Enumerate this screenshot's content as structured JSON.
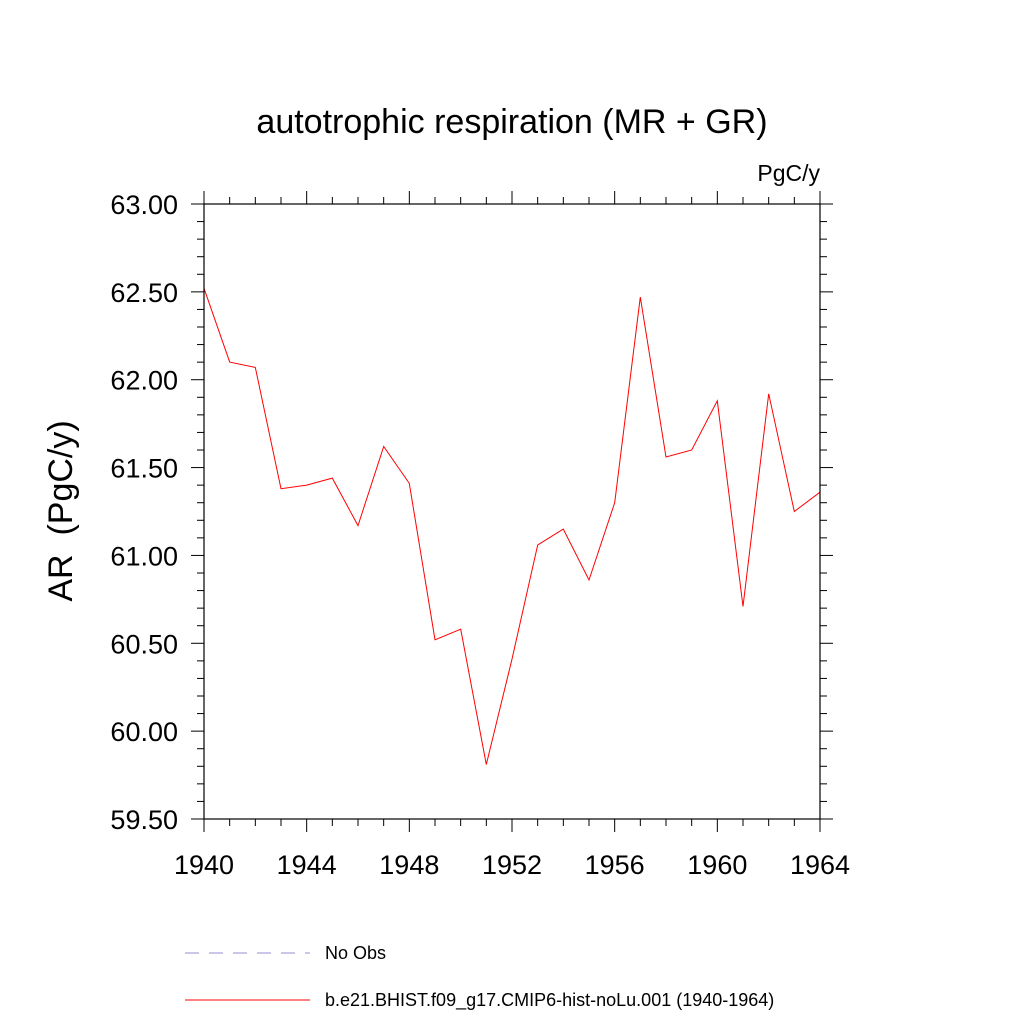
{
  "chart_data": {
    "type": "line",
    "title": "autotrophic respiration (MR + GR)",
    "units": "PgC/y",
    "ylabel": "AR  (PgC/y)",
    "xlabel": "",
    "xlim": [
      1940,
      1964
    ],
    "ylim": [
      59.5,
      63.0
    ],
    "x_ticks": [
      "1940",
      "1944",
      "1948",
      "1952",
      "1956",
      "1960",
      "1964"
    ],
    "y_ticks": [
      "59.50",
      "60.00",
      "60.50",
      "61.00",
      "61.50",
      "62.00",
      "62.50",
      "63.00"
    ],
    "series": [
      {
        "name": "b.e21.BHIST.f09_g17.CMIP6-hist-noLu.001 (1940-1964)",
        "color": "#ff0000",
        "x": [
          1940,
          1941,
          1942,
          1943,
          1944,
          1945,
          1946,
          1947,
          1948,
          1949,
          1950,
          1951,
          1952,
          1953,
          1954,
          1955,
          1956,
          1957,
          1958,
          1959,
          1960,
          1961,
          1962,
          1963,
          1964
        ],
        "y": [
          62.52,
          62.1,
          62.07,
          61.38,
          61.4,
          61.44,
          61.17,
          61.62,
          61.41,
          60.52,
          60.58,
          59.81,
          60.41,
          61.06,
          61.15,
          60.86,
          61.3,
          62.47,
          61.56,
          61.6,
          61.88,
          60.71,
          61.92,
          61.25,
          61.36
        ]
      }
    ],
    "legend": [
      {
        "label": "No Obs",
        "style": "dashed",
        "color": "#9a8fd6"
      },
      {
        "label": "b.e21.BHIST.f09_g17.CMIP6-hist-noLu.001 (1940-1964)",
        "style": "solid",
        "color": "#ff0000"
      }
    ],
    "legend_position": "bottom"
  }
}
